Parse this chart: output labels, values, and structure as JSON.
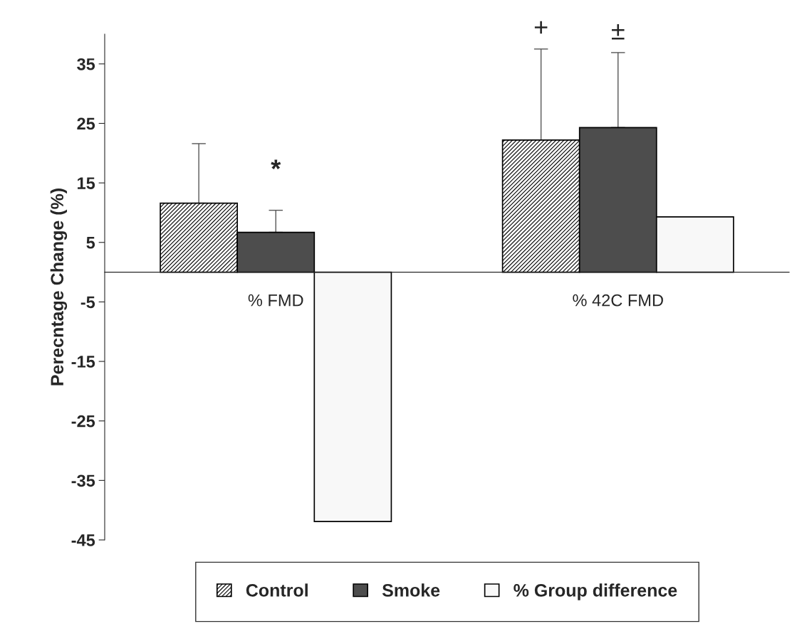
{
  "chart_data": {
    "type": "bar",
    "ylabel": "Perecntage Change (%)",
    "categories": [
      "% FMD",
      "% 42C FMD"
    ],
    "series": [
      {
        "name": "Control",
        "color": "#000000",
        "values": [
          11.6,
          22.2
        ],
        "errors": [
          [
            11.6,
            21.6
          ],
          [
            22.2,
            37.5
          ]
        ]
      },
      {
        "name": "Smoke",
        "color": "#4d4d4d",
        "values": [
          6.7,
          24.3
        ],
        "errors": [
          [
            6.7,
            10.4
          ],
          [
            24.3,
            36.9
          ]
        ]
      },
      {
        "name": "% Group difference",
        "color": "#f8f8f8",
        "values": [
          -41.9,
          9.3
        ]
      }
    ],
    "ylim": [
      -45,
      40
    ],
    "yticks": [
      35,
      25,
      15,
      5,
      -5,
      -15,
      -25,
      -35,
      -45
    ],
    "annotations": [
      "*",
      "+",
      "±"
    ],
    "grid": false,
    "legend": "bottom"
  }
}
